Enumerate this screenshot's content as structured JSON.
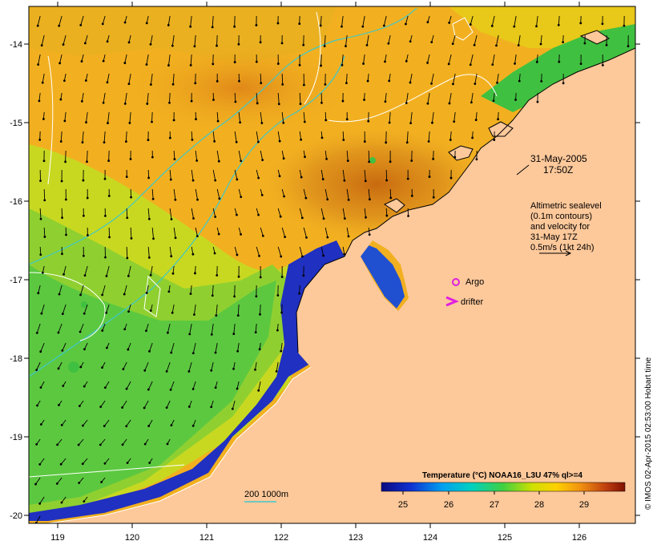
{
  "map": {
    "date_label": "31-May-2005",
    "time_label": "17:50Z",
    "altimetry_note": [
      "Altimetric sealevel",
      "(0.1m contours)",
      "and velocity for",
      "31-May 17Z",
      "0.5m/s (1kt 24h)"
    ],
    "argo_label": "Argo",
    "drifter_label": "drifter",
    "isobath_label": "200  1000m",
    "colorbar_title": "Temperature (°C) NOAA16_L3U 47% ql>=4",
    "colorbar_ticks": [
      "25",
      "26",
      "27",
      "28",
      "29"
    ],
    "credit": "© IMOS 02-Apr-2015 02:53:00 Hobart time",
    "lon_ticks": [
      "119",
      "120",
      "121",
      "122",
      "123",
      "124",
      "125",
      "126"
    ],
    "lat_ticks": [
      "-14",
      "-15",
      "-16",
      "-17",
      "-18",
      "-19",
      "-20"
    ],
    "colors": {
      "land": "#fdc89a",
      "isobath": "#40c8c8",
      "contour": "#ffffff",
      "argo": "#e020e0",
      "drifter": "#e020e0"
    }
  }
}
